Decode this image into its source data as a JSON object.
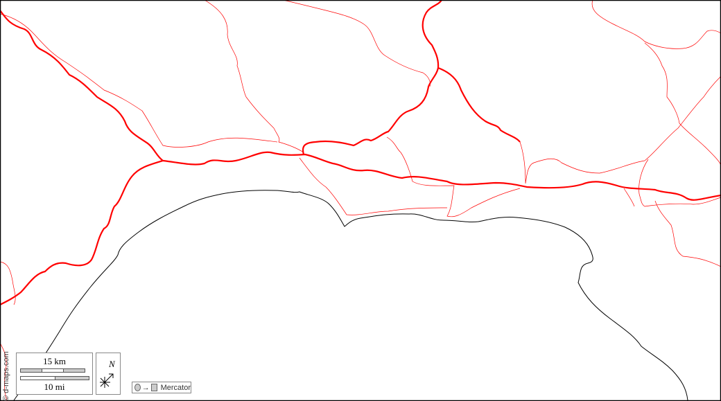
{
  "map": {
    "credit": "© d-maps.com",
    "scale": {
      "km_label": "15 km",
      "mi_label": "10 mi"
    },
    "north_label": "N",
    "projection": {
      "label": "Mercator",
      "arrow": "→"
    },
    "colors": {
      "roads": "#ff0000",
      "coastline": "#000000",
      "background": "#ffffff"
    }
  }
}
